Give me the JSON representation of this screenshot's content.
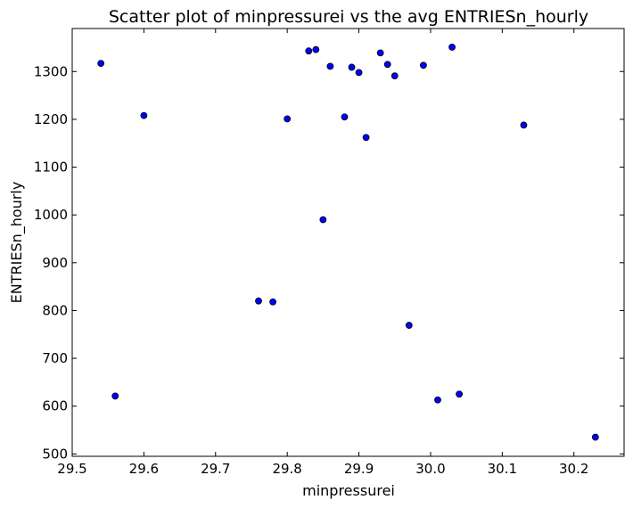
{
  "chart_data": {
    "type": "scatter",
    "title": "Scatter plot of minpressurei vs the avg ENTRIESn_hourly",
    "xlabel": "minpressurei",
    "ylabel": "ENTRIESn_hourly",
    "xlim": [
      29.5,
      30.27
    ],
    "ylim": [
      495,
      1390
    ],
    "xticks": [
      "29.5",
      "29.6",
      "29.7",
      "29.8",
      "29.9",
      "30.0",
      "30.1",
      "30.2"
    ],
    "yticks": [
      "500",
      "600",
      "700",
      "800",
      "900",
      "1000",
      "1100",
      "1200",
      "1300"
    ],
    "grid": false,
    "marker_color": "#0000ff",
    "x": [
      29.54,
      29.56,
      29.6,
      29.76,
      29.78,
      29.8,
      29.83,
      29.84,
      29.85,
      29.86,
      29.88,
      29.89,
      29.9,
      29.91,
      29.93,
      29.94,
      29.95,
      29.97,
      29.99,
      30.01,
      30.03,
      30.04,
      30.13,
      30.23
    ],
    "y": [
      1317,
      621,
      1208,
      820,
      818,
      1201,
      1343,
      1346,
      990,
      1311,
      1205,
      1309,
      1298,
      1162,
      1339,
      1315,
      1291,
      769,
      1313,
      613,
      1351,
      625,
      1188,
      535
    ]
  }
}
